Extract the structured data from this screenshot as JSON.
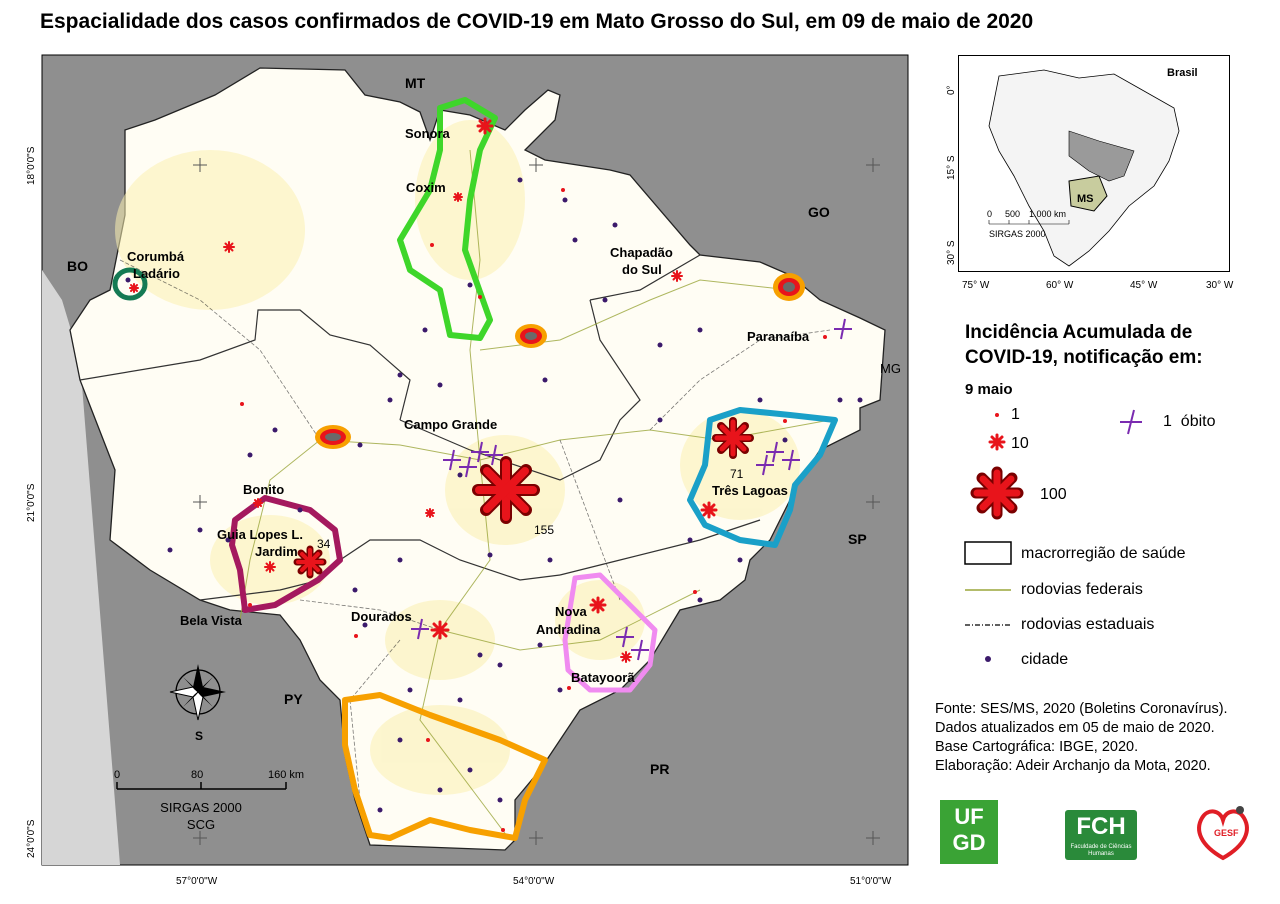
{
  "title": "Espacialidade dos casos confirmados de COVID-19 em Mato Grosso do Sul, em 09 de maio de 2020",
  "map": {
    "neighbors": {
      "mt": "MT",
      "go": "GO",
      "mg": "MG",
      "sp": "SP",
      "pr": "PR",
      "py": "PY",
      "bo": "BO"
    },
    "cities": {
      "sonora": "Sonora",
      "coxim": "Coxim",
      "corumba": "Corumbá",
      "ladario": "Ladário",
      "chapadao1": "Chapadão",
      "chapadao2": "do Sul",
      "paranaiba": "Paranaíba",
      "campo_grande": "Campo Grande",
      "tres_lagoas": "Três Lagoas",
      "bonito": "Bonito",
      "guia_lopes": "Guia Lopes L.",
      "jardim": "Jardim",
      "bela_vista": "Bela Vista",
      "dourados": "Dourados",
      "nova": "Nova",
      "andradina": "Andradina",
      "batayopora": "Batayoorã"
    },
    "case_counts": {
      "campo_grande": "155",
      "tres_lagoas": "71",
      "jardim": "34"
    },
    "lat_labels": [
      "18°0'0\"S",
      "21°0'0\"S",
      "24°0'0\"S"
    ],
    "lon_labels": [
      "57°0'0\"W",
      "54°0'0\"W",
      "51°0'0\"W"
    ],
    "north": "S",
    "scale": {
      "t0": "0",
      "t80": "80",
      "t160": "160 km",
      "datum": "SIRGAS 2000",
      "proj": "SCG"
    }
  },
  "inset": {
    "label": "Brasil",
    "state": "MS",
    "lat_labels": [
      "0°",
      "15° S",
      "30° S"
    ],
    "lon_labels": [
      "75° W",
      "60° W",
      "45° W",
      "30° W"
    ],
    "scale": {
      "t0": "0",
      "t500": "500",
      "t1000": "1.000 km",
      "datum": "SIRGAS 2000"
    }
  },
  "legend": {
    "title": "Incidência Acumulada de COVID-19, notificação em:",
    "subtitle": "9 maio",
    "sizes": [
      "1",
      "10",
      "100"
    ],
    "death": "1  óbito",
    "macro": "macrorregião de saúde",
    "federal": "rodovias federais",
    "estadual": "rodovias estaduais",
    "cidade": "cidade"
  },
  "source": [
    "Fonte: SES/MS, 2020 (Boletins Coronavírus).",
    "Dados atualizados em 05 de maio de 2020.",
    "Base Cartográfica: IBGE, 2020.",
    "Elaboração: Adeir Archanjo da Mota, 2020."
  ],
  "logos": {
    "ufgd1": "UF",
    "ufgd2": "GD",
    "fch": "FCH",
    "fch_sub": "Faculdade de Ciências Humanas",
    "gesf": "GESF"
  },
  "colors": {
    "case": "#e8141b",
    "death": "#7a2bb0",
    "sea": "#8f8f8f",
    "ms": "#ffffff",
    "road": "#9aa53a"
  }
}
